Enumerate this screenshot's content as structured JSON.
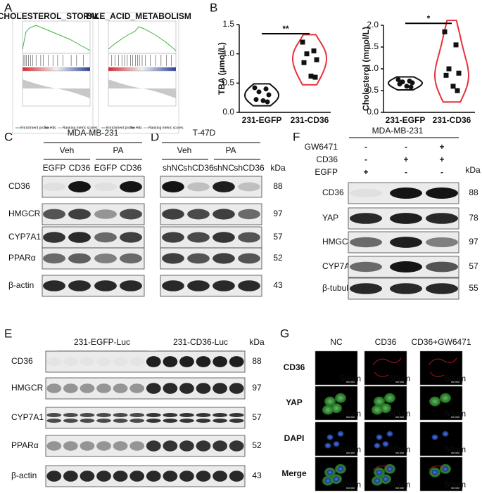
{
  "panel_labels": [
    "A",
    "B",
    "C",
    "D",
    "E",
    "F",
    "G"
  ],
  "panel_a": {
    "plots": [
      {
        "title": "CHOLESTEROL_STORAGE"
      },
      {
        "title": "BILE_ACID_METABOLISM"
      }
    ],
    "legend": [
      "Enrichment profile",
      "Hits",
      "Ranking metric scores"
    ]
  },
  "chart_data": [
    {
      "type": "violin",
      "y_label": "TBA (μmol/L)",
      "categories": [
        "231-EGFP",
        "231-CD36"
      ],
      "values": [
        [
          0.42,
          0.4,
          0.35,
          0.3,
          0.22,
          0.2,
          0.18
        ],
        [
          1.2,
          1.05,
          1.0,
          0.9,
          0.85,
          0.62,
          0.6
        ]
      ],
      "colors": [
        "#111111",
        "#e8313a"
      ],
      "ylim": [
        0,
        1.5
      ],
      "yticks": [
        {
          "value": 0,
          "label": "0.0"
        },
        {
          "value": 0.5,
          "label": "0.5"
        },
        {
          "value": 1,
          "label": "1.0"
        },
        {
          "value": 1.5,
          "label": "1.5"
        }
      ],
      "significance": "**"
    },
    {
      "type": "violin",
      "y_label": "Cholesterol (mmol/L)",
      "categories": [
        "231-EGFP",
        "231-CD36"
      ],
      "values": [
        [
          0.75,
          0.72,
          0.7,
          0.68,
          0.65,
          0.6,
          0.58
        ],
        [
          1.85,
          1.55,
          1.0,
          0.9,
          0.85,
          0.6,
          0.5
        ]
      ],
      "colors": [
        "#111111",
        "#e8313a"
      ],
      "ylim": [
        0,
        2
      ],
      "yticks": [
        {
          "value": 0,
          "label": "0.0"
        },
        {
          "value": 0.5,
          "label": "0.5"
        },
        {
          "value": 1,
          "label": "1.0"
        },
        {
          "value": 1.5,
          "label": "1.5"
        },
        {
          "value": 2,
          "label": "2.0"
        }
      ],
      "significance": "*"
    }
  ],
  "panel_c": {
    "title": "MDA-MB-231",
    "groups": [
      "Veh",
      "PA"
    ],
    "lanes": [
      "EGFP",
      "CD36",
      "EGFP",
      "CD36"
    ],
    "rows": [
      "CD36",
      "HMGCR",
      "CYP7A1",
      "PPARα",
      "β-actin"
    ]
  },
  "panel_d": {
    "title": "T-47D",
    "groups": [
      "Veh",
      "PA"
    ],
    "lanes": [
      "shNC",
      "shCD36",
      "shNC",
      "shCD36"
    ],
    "kda_label": "kDa",
    "kda": [
      "88",
      "97",
      "57",
      "52",
      "43"
    ]
  },
  "panel_e": {
    "groups": [
      "231-EGFP-Luc",
      "231-CD36-Luc"
    ],
    "kda_label": "kDa",
    "rows": [
      "CD36",
      "HMGCR",
      "CYP7A1",
      "PPARα",
      "β-actin"
    ],
    "kda": [
      "88",
      "97",
      "57",
      "52",
      "43"
    ]
  },
  "panel_f": {
    "title": "MDA-MB-231",
    "treatments": [
      {
        "name": "GW6471",
        "signs": [
          "-",
          "-",
          "+"
        ]
      },
      {
        "name": "CD36",
        "signs": [
          "-",
          "+",
          "+"
        ]
      },
      {
        "name": "EGFP",
        "signs": [
          "+",
          "-",
          "-"
        ]
      }
    ],
    "kda_label": "kDa",
    "rows": [
      "CD36",
      "YAP",
      "HMGCR",
      "CYP7A1",
      "β-tubulin"
    ],
    "kda": [
      "88",
      "78",
      "97",
      "57",
      "55"
    ]
  },
  "panel_g": {
    "columns": [
      "NC",
      "CD36",
      "CD36+GW6471"
    ],
    "rows": [
      "CD36",
      "YAP",
      "DAPI",
      "Merge"
    ],
    "scale_bar": "50μm"
  }
}
